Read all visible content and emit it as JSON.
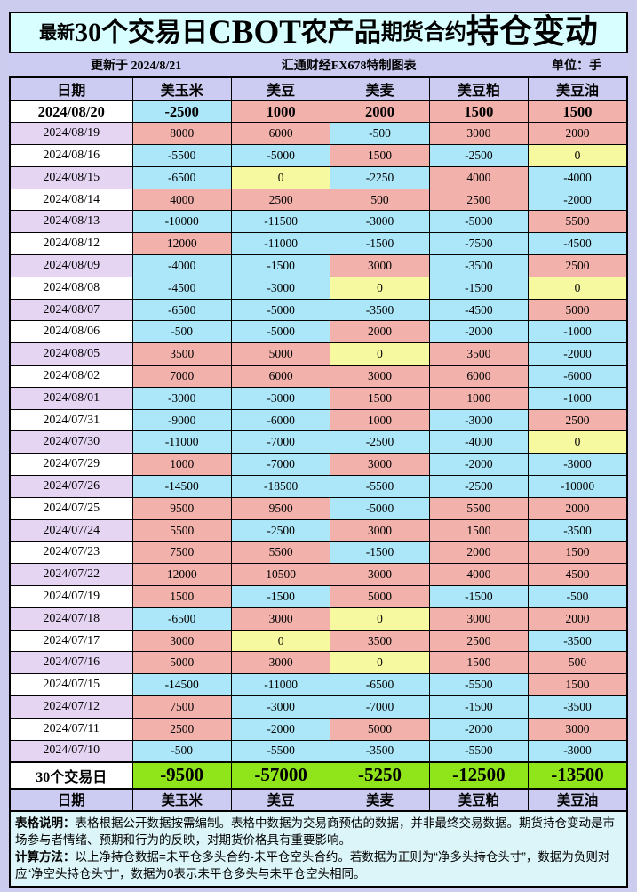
{
  "title": "最新30个交易日CBOT农产品期货合约持仓变动",
  "title_parts": [
    {
      "text": "最新"
    },
    {
      "text": "30个交易日"
    },
    {
      "text": "CBOT"
    },
    {
      "text": "农产品"
    },
    {
      "text": "期货合约"
    },
    {
      "text": "持仓变动"
    }
  ],
  "meta": {
    "updated": "更新于 2024/8/21",
    "source": "汇通财经FX678特制图表",
    "unit": "单位：手"
  },
  "chart_data": {
    "type": "table",
    "title": "最新30个交易日CBOT农产品期货合约持仓变动",
    "unit": "手",
    "columns": [
      "日期",
      "美玉米",
      "美豆",
      "美麦",
      "美豆粕",
      "美豆油"
    ],
    "rows": [
      [
        "2024/08/20",
        -2500,
        1000,
        2000,
        1500,
        1500
      ],
      [
        "2024/08/19",
        8000,
        6000,
        -500,
        3000,
        2000
      ],
      [
        "2024/08/16",
        -5500,
        -5000,
        1500,
        -2500,
        0
      ],
      [
        "2024/08/15",
        -6500,
        0,
        -2250,
        4000,
        -4000
      ],
      [
        "2024/08/14",
        4000,
        2500,
        500,
        2500,
        -2000
      ],
      [
        "2024/08/13",
        -10000,
        -11500,
        -3000,
        -5000,
        5500
      ],
      [
        "2024/08/12",
        12000,
        -11000,
        -1500,
        -7500,
        -4500
      ],
      [
        "2024/08/09",
        -4000,
        -1500,
        3000,
        -3500,
        2500
      ],
      [
        "2024/08/08",
        -4500,
        -3000,
        0,
        -1500,
        0
      ],
      [
        "2024/08/07",
        -6500,
        -5000,
        -3500,
        -4500,
        5000
      ],
      [
        "2024/08/06",
        -500,
        -5000,
        2000,
        -2000,
        -1000
      ],
      [
        "2024/08/05",
        3500,
        5000,
        0,
        3500,
        -2000
      ],
      [
        "2024/08/02",
        7000,
        6000,
        3000,
        6000,
        -6000
      ],
      [
        "2024/08/01",
        -3000,
        -3000,
        1500,
        1000,
        -1000
      ],
      [
        "2024/07/31",
        -9000,
        -6000,
        1000,
        -3000,
        2500
      ],
      [
        "2024/07/30",
        -11000,
        -7000,
        -2500,
        -4000,
        0
      ],
      [
        "2024/07/29",
        1000,
        -7000,
        3000,
        -2000,
        -3000
      ],
      [
        "2024/07/26",
        -14500,
        -18500,
        -5500,
        -2500,
        -10000
      ],
      [
        "2024/07/25",
        9500,
        9500,
        -5000,
        5500,
        2000
      ],
      [
        "2024/07/24",
        5500,
        -2500,
        3000,
        1500,
        -3500
      ],
      [
        "2024/07/23",
        7500,
        5500,
        -1500,
        2000,
        1500
      ],
      [
        "2024/07/22",
        12000,
        10500,
        3000,
        4000,
        4500
      ],
      [
        "2024/07/19",
        1500,
        -1500,
        5000,
        -1500,
        -500
      ],
      [
        "2024/07/18",
        -6500,
        3000,
        0,
        3000,
        2000
      ],
      [
        "2024/07/17",
        3000,
        0,
        3500,
        2500,
        -3500
      ],
      [
        "2024/07/16",
        5000,
        3000,
        0,
        1500,
        500
      ],
      [
        "2024/07/15",
        -14500,
        -11000,
        -6500,
        -5500,
        1500
      ],
      [
        "2024/07/12",
        7500,
        -3000,
        -7000,
        -1500,
        -3500
      ],
      [
        "2024/07/11",
        2500,
        -2000,
        5000,
        -2000,
        3000
      ],
      [
        "2024/07/10",
        -500,
        -5500,
        -3500,
        -5500,
        -3000
      ]
    ],
    "summary_row": [
      "30个交易日",
      -9500,
      -57000,
      -5250,
      -12500,
      -13500
    ],
    "color_legend": {
      "positive_increase": "pink",
      "negative_decrease": "cyan",
      "zero_unchanged": "yellow",
      "summary_total": "green"
    }
  },
  "notes": [
    {
      "label": "表格说明：",
      "text": "表格根据公开数据按需编制。表格中数据为交易商预估的数据，并非最终交易数据。期货持仓变动是市场参与者情绪、预期和行为的反映，对期货价格具有重要影响。"
    },
    {
      "label": "计算方法：",
      "text": "以上净持仓数据=未平仓多头合约-未平仓空头合约。若数据为正则为“净多头持仓头寸”，数据为负则对应“净空头持仓头寸”，数据为0表示未平仓多头与未平仓空头相同。"
    }
  ],
  "colors": {
    "page_bg": "#ccccee",
    "title_bg": "#d8feff",
    "band_bg": "#ccccf2",
    "date_alt": "#e5d5f3",
    "positive": "#f2b1aa",
    "negative": "#abe7f8",
    "zero": "#f6f9a0",
    "summary": "#90e51a",
    "note_bg": "#dbf5f9"
  }
}
